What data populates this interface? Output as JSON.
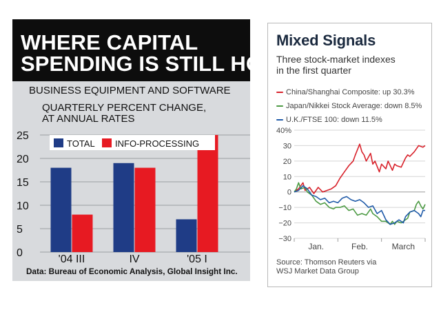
{
  "chart_data": [
    {
      "type": "bar",
      "title": "WHERE CAPITAL SPENDING IS STILL HOT",
      "subtitle": "BUSINESS EQUIPMENT AND SOFTWARE",
      "ylabel_line1": "QUARTERLY PERCENT CHANGE,",
      "ylabel_line2": "AT ANNUAL RATES",
      "categories": [
        "'04 III",
        "IV",
        "'05 I"
      ],
      "series": [
        {
          "name": "TOTAL",
          "color": "#1f3c86",
          "values": [
            18,
            19,
            7
          ]
        },
        {
          "name": "INFO-PROCESSING",
          "color": "#e71a22",
          "values": [
            8,
            18,
            25
          ]
        }
      ],
      "yticks": [
        0,
        5,
        10,
        15,
        20,
        25
      ],
      "ylim": [
        0,
        25
      ],
      "source": "Data: Bureau of Economic Analysis, Global Insight Inc."
    },
    {
      "type": "line",
      "title": "Mixed Signals",
      "subtitle_line1": "Three stock-market indexes",
      "subtitle_line2": "in the first quarter",
      "x_labels": [
        "Jan.",
        "Feb.",
        "March"
      ],
      "yticks": [
        -30,
        -20,
        -10,
        0,
        10,
        20,
        30,
        40
      ],
      "ytick_labels": [
        "−30",
        "−20",
        "−10",
        "0",
        "10",
        "20",
        "30",
        "40%"
      ],
      "ylim": [
        -30,
        40
      ],
      "xlim": [
        0,
        60
      ],
      "series": [
        {
          "name": "China/Shanghai Composite: up 30.3%",
          "color": "#d8212a",
          "x": [
            0,
            2,
            4,
            5,
            7,
            9,
            11,
            13,
            15,
            17,
            19,
            21,
            23,
            25,
            27,
            28,
            30,
            31,
            32,
            33,
            35,
            36,
            37,
            39,
            40,
            42,
            43,
            45,
            46,
            47,
            49,
            51,
            52,
            53,
            55,
            57,
            59,
            60
          ],
          "values": [
            0,
            2,
            6,
            1,
            3,
            -1,
            3,
            0,
            1,
            2,
            4,
            9,
            13,
            17,
            20,
            24,
            31,
            26,
            24,
            20,
            25,
            18,
            20,
            13,
            18,
            15,
            20,
            14,
            18,
            17,
            16,
            22,
            24,
            23,
            26,
            30,
            29,
            30
          ]
        },
        {
          "name": "Japan/Nikkei Stock Average: down 8.5%",
          "color": "#4c9a43",
          "x": [
            0,
            1,
            2,
            3,
            5,
            6,
            8,
            10,
            12,
            14,
            16,
            18,
            19,
            21,
            23,
            25,
            27,
            29,
            31,
            33,
            35,
            36,
            38,
            40,
            42,
            44,
            45,
            46,
            47,
            49,
            51,
            52,
            53,
            55,
            56,
            57,
            58,
            59,
            60
          ],
          "values": [
            0,
            2,
            6,
            2,
            3,
            0,
            -2,
            -6,
            -8,
            -7,
            -10,
            -11,
            -10,
            -10,
            -9,
            -12,
            -11,
            -15,
            -14,
            -15,
            -11,
            -14,
            -16,
            -19,
            -19,
            -21,
            -19,
            -21,
            -19,
            -20,
            -18,
            -17,
            -13,
            -12,
            -8,
            -6,
            -9,
            -11,
            -8
          ]
        },
        {
          "name": "U.K./FTSE 100: down 11.5%",
          "color": "#1f5aa8",
          "x": [
            0,
            2,
            4,
            6,
            8,
            10,
            12,
            14,
            16,
            18,
            20,
            22,
            24,
            26,
            28,
            30,
            32,
            34,
            36,
            38,
            40,
            42,
            44,
            46,
            48,
            50,
            51,
            53,
            55,
            57,
            58,
            59,
            60
          ],
          "values": [
            0,
            1,
            4,
            2,
            -2,
            -3,
            -5,
            -4,
            -7,
            -6,
            -7,
            -4,
            -3,
            -5,
            -6,
            -5,
            -7,
            -10,
            -9,
            -14,
            -12,
            -18,
            -21,
            -20,
            -18,
            -20,
            -16,
            -13,
            -12,
            -14,
            -16,
            -12,
            -12
          ]
        }
      ],
      "source_line1": "Source: Thomson Reuters via",
      "source_line2": "WSJ Market Data Group"
    }
  ]
}
